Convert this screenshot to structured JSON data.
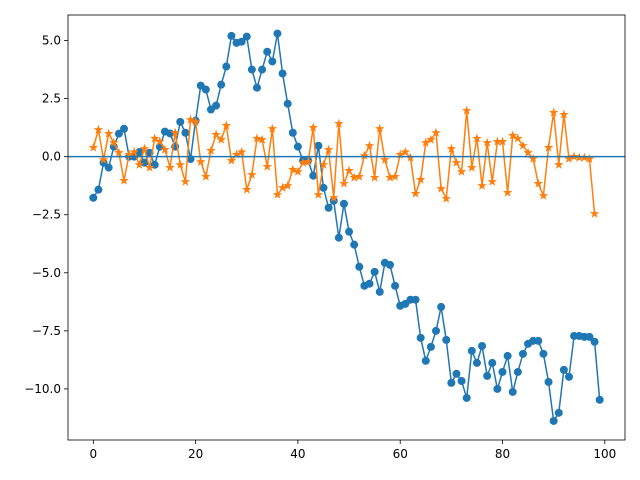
{
  "chart_data": {
    "type": "line",
    "xlim": [
      -4.95,
      103.95
    ],
    "xticks": [
      0,
      20,
      40,
      60,
      80,
      100
    ],
    "ylim": [
      -12.2,
      6.1
    ],
    "yticks": [
      {
        "value": 5,
        "label": "5.0"
      },
      {
        "value": 2.5,
        "label": "2.5"
      },
      {
        "value": 0,
        "label": "0.0"
      },
      {
        "value": -2.5,
        "label": "−2.5"
      },
      {
        "value": -5,
        "label": "−5.0"
      },
      {
        "value": -7.5,
        "label": "−7.5"
      },
      {
        "value": -10,
        "label": "−10.0"
      }
    ],
    "hline": {
      "value": 0,
      "color": "#1f77b4"
    },
    "series": [
      {
        "color": "#1f77b4",
        "marker": "circle",
        "values": [
          -1.77,
          -1.42,
          -0.26,
          -0.47,
          0.43,
          0.99,
          1.2,
          0,
          0,
          0.2,
          -0.26,
          0.17,
          -0.35,
          0.43,
          1.08,
          1.0,
          0.43,
          1.5,
          1.03,
          -0.1,
          1.55,
          3.06,
          2.89,
          2.03,
          2.2,
          3.1,
          3.88,
          5.2,
          4.9,
          4.95,
          5.17,
          3.75,
          2.97,
          3.75,
          4.52,
          4.1,
          5.3,
          3.58,
          2.28,
          1.03,
          0.43,
          -0.17,
          -0.17,
          -0.82,
          0.47,
          -1.34,
          -2.2,
          -1.9,
          -3.49,
          -2.03,
          -3.23,
          -3.79,
          -4.74,
          -5.56,
          -5.47,
          -4.96,
          -5.82,
          -4.57,
          -4.66,
          -5.56,
          -6.42,
          -6.34,
          -6.16,
          -6.16,
          -7.8,
          -8.79,
          -8.19,
          -7.5,
          -6.47,
          -7.89,
          -9.74,
          -9.35,
          -9.66,
          -10.39,
          -8.36,
          -8.88,
          -8.15,
          -9.44,
          -8.88,
          -10,
          -9.27,
          -8.58,
          -10.13,
          -9.27,
          -8.49,
          -8.06,
          -7.93,
          -7.93,
          -8.49,
          -9.7,
          -11.38,
          -11.03,
          -9.18,
          -9.48,
          -7.72,
          -7.72,
          -7.76,
          -7.76,
          -7.97,
          -10.47
        ]
      },
      {
        "color": "#ff7f0e",
        "marker": "star",
        "values": [
          0.39,
          1.16,
          -0.13,
          0.99,
          0.6,
          0.17,
          -1.03,
          0.09,
          0.2,
          -0.35,
          0.34,
          -0.47,
          0.78,
          0.65,
          0.3,
          -0.47,
          1.03,
          -0.35,
          -1.08,
          1.59,
          1.5,
          -0.22,
          -0.86,
          0.26,
          0.95,
          0.73,
          1.34,
          -0.17,
          0.09,
          0.2,
          -1.42,
          -0.78,
          0.78,
          0.73,
          -0.43,
          1.2,
          -1.64,
          -1.34,
          -1.25,
          -0.56,
          -0.65,
          -0.26,
          -0.22,
          1.25,
          -1.64,
          -0.35,
          0.3,
          -1.77,
          1.42,
          -1.16,
          -0.6,
          -0.9,
          -0.86,
          0.04,
          0.47,
          -0.9,
          1.2,
          -0.13,
          -0.9,
          -0.86,
          0.09,
          0.2,
          -0.04,
          -1.59,
          -0.99,
          0.6,
          0.73,
          1.03,
          -1.38,
          -1.81,
          0.34,
          -0.26,
          -0.65,
          1.98,
          -0.47,
          0.78,
          -1.25,
          0.6,
          -1.08,
          0.65,
          0.65,
          -1.55,
          0.91,
          0.78,
          0.47,
          0.17,
          -0.09,
          -1.16,
          -1.68,
          0.39,
          1.9,
          -0.35,
          1.81,
          -0.09,
          0,
          -0.04,
          -0.04,
          -0.1,
          -2.46
        ]
      }
    ]
  }
}
